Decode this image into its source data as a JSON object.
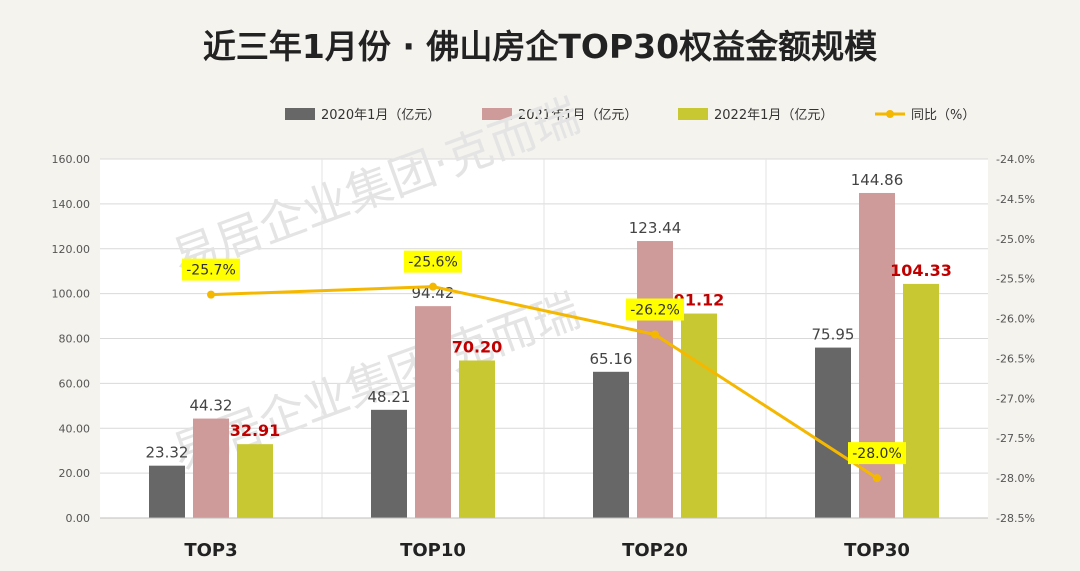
{
  "chart_data": {
    "type": "bar",
    "title": "近三年1月份 · 佛山房企TOP30权益金额规模",
    "categories": [
      "TOP3",
      "TOP10",
      "TOP20",
      "TOP30"
    ],
    "series": [
      {
        "name": "2020年1月（亿元）",
        "values": [
          23.32,
          48.21,
          65.16,
          75.95
        ],
        "color": "#676767",
        "labels": [
          "23.32",
          "48.21",
          "65.16",
          "75.95"
        ],
        "label_color": "#444444",
        "label_bold": false
      },
      {
        "name": "2021年1月（亿元）",
        "values": [
          44.32,
          94.42,
          123.44,
          144.86
        ],
        "color": "#cf9a9a",
        "labels": [
          "44.32",
          "94.42",
          "123.44",
          "144.86"
        ],
        "label_color": "#444444",
        "label_bold": false
      },
      {
        "name": "2022年1月（亿元）",
        "values": [
          32.91,
          70.2,
          91.12,
          104.33
        ],
        "color": "#c8c832",
        "labels": [
          "32.91",
          "70.20",
          "91.12",
          "104.33"
        ],
        "label_color": "#c00000",
        "label_bold": true
      }
    ],
    "line_series": {
      "name": "同比（%）",
      "values": [
        -25.7,
        -25.6,
        -26.2,
        -28.0
      ],
      "labels": [
        "-25.7%",
        "-25.6%",
        "-26.2%",
        "-28.0%"
      ],
      "color": "#f5b800",
      "label_bg": "#ffff00"
    },
    "y_left": {
      "min": 0,
      "max": 160,
      "ticks": [
        "0.00",
        "20.00",
        "40.00",
        "60.00",
        "80.00",
        "100.00",
        "120.00",
        "140.00",
        "160.00"
      ]
    },
    "y_right": {
      "min": -28.5,
      "max": -24.0,
      "ticks": [
        "-24.0%",
        "-24.5%",
        "-25.0%",
        "-25.5%",
        "-26.0%",
        "-26.5%",
        "-27.0%",
        "-27.5%",
        "-28.0%",
        "-28.5%"
      ]
    },
    "grid": true,
    "legend": "top"
  },
  "watermark": {
    "text1": "易居企业集团·克而瑞"
  }
}
